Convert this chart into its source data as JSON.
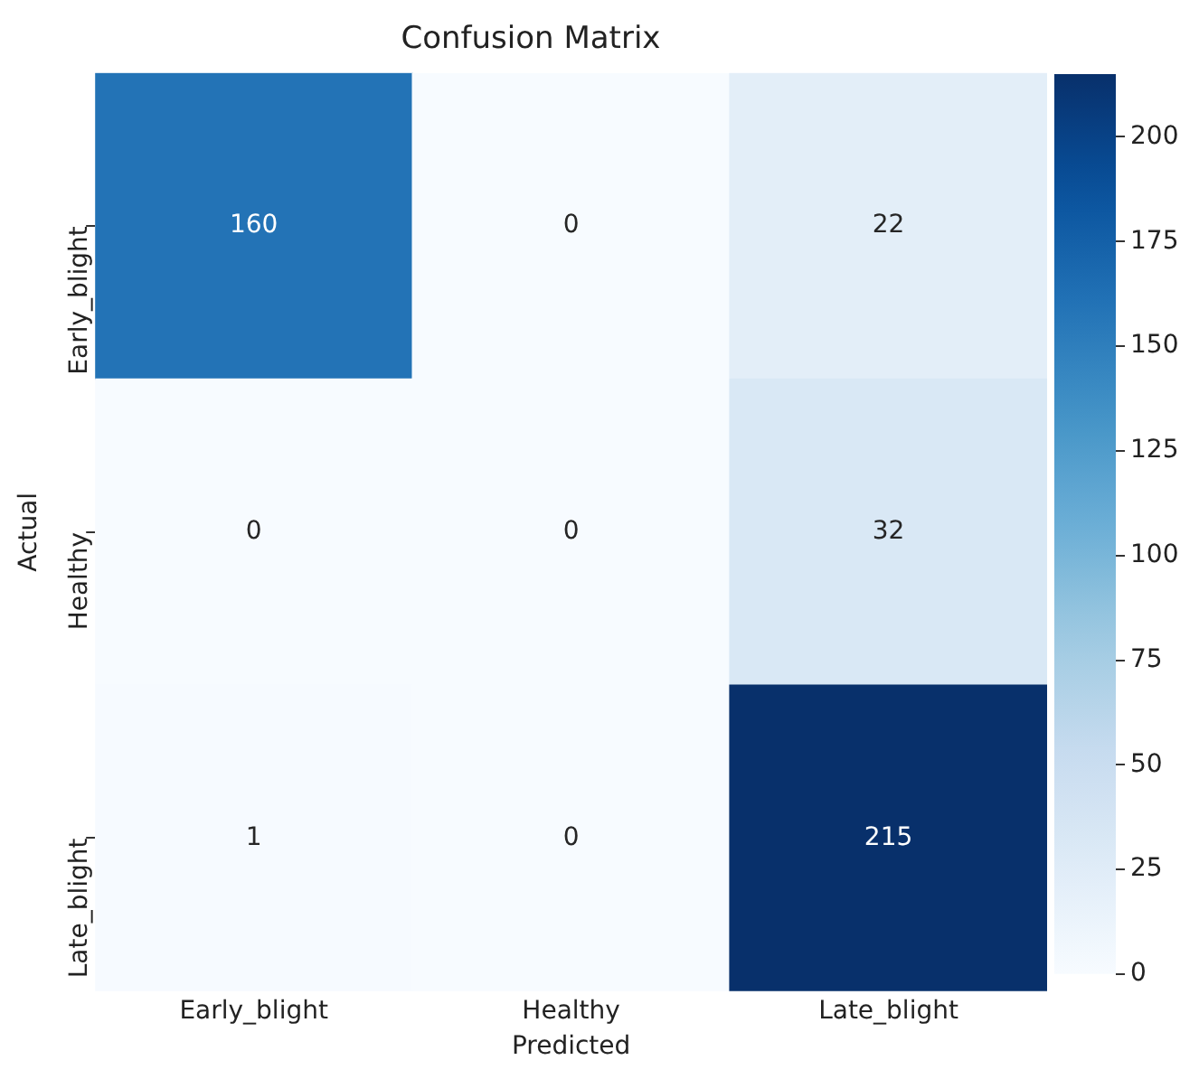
{
  "chart_data": {
    "type": "heatmap",
    "title": "Confusion Matrix",
    "xlabel": "Predicted",
    "ylabel": "Actual",
    "categories": [
      "Early_blight",
      "Healthy",
      "Late_blight"
    ],
    "y_categories": [
      "Early_blight",
      "Healthy",
      "Late_blight"
    ],
    "cells": [
      [
        160,
        0,
        22
      ],
      [
        0,
        0,
        32
      ],
      [
        1,
        0,
        215
      ]
    ],
    "clim": [
      0,
      215
    ],
    "cticks": [
      0,
      25,
      50,
      75,
      100,
      125,
      150,
      175,
      200
    ],
    "data_labels": true
  }
}
